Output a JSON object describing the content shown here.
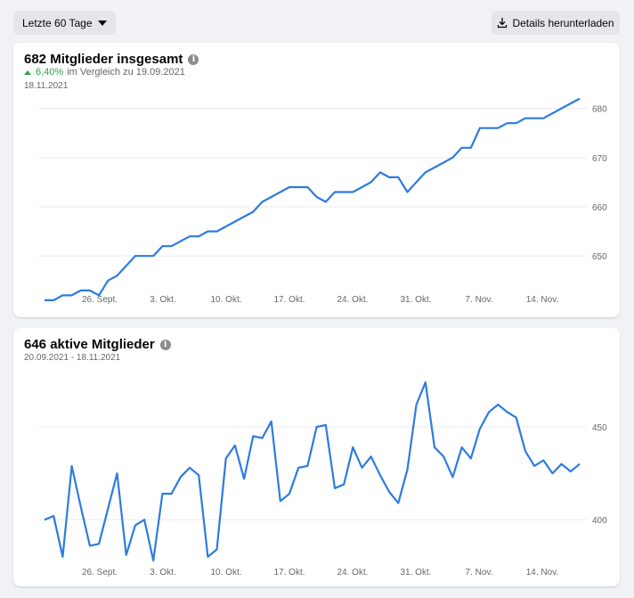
{
  "toolbar": {
    "range_label": "Letzte 60 Tage",
    "download_label": "Details herunterladen"
  },
  "colors": {
    "line": "#2d7be0",
    "grid": "#e9ebee",
    "positive": "#31a24c"
  },
  "icons": {
    "range_caret": "caret-down-icon",
    "download": "download-icon",
    "info": "info-icon",
    "change": "arrow-up-icon"
  },
  "members_card": {
    "title": "682 Mitglieder insgesamt",
    "change_pct": "6,40%",
    "change_text": "im Vergleich zu 19.09.2021",
    "date": "18.11.2021"
  },
  "active_card": {
    "title": "646 aktive Mitglieder",
    "date": "20.09.2021 - 18.11.2021"
  },
  "chart_data": [
    {
      "type": "line",
      "title": "682 Mitglieder insgesamt",
      "x_tick_labels": [
        "26. Sept.",
        "3. Okt.",
        "10. Okt.",
        "17. Okt.",
        "24. Okt.",
        "31. Okt.",
        "7. Nov.",
        "14. Nov."
      ],
      "y_ticks": [
        650,
        660,
        670,
        680
      ],
      "ylim": [
        637,
        687
      ],
      "grid": true,
      "series": [
        {
          "values": [
            641,
            641,
            642,
            642,
            643,
            643,
            642,
            645,
            646,
            648,
            650,
            650,
            650,
            652,
            652,
            653,
            654,
            654,
            655,
            655,
            656,
            657,
            658,
            659,
            661,
            662,
            663,
            664,
            664,
            664,
            662,
            661,
            663,
            663,
            663,
            664,
            665,
            667,
            666,
            666,
            663,
            665,
            667,
            668,
            669,
            670,
            672,
            672,
            676,
            676,
            676,
            677,
            677,
            678,
            678,
            678,
            679,
            680,
            681,
            682
          ]
        }
      ]
    },
    {
      "type": "line",
      "title": "646 aktive Mitglieder",
      "x_tick_labels": [
        "26. Sept.",
        "3. Okt.",
        "10. Okt.",
        "17. Okt.",
        "24. Okt.",
        "31. Okt.",
        "7. Nov.",
        "14. Nov."
      ],
      "y_ticks": [
        400,
        450
      ],
      "ylim": [
        366,
        486
      ],
      "grid": true,
      "series": [
        {
          "values": [
            400,
            402,
            380,
            429,
            407,
            386,
            387,
            406,
            425,
            381,
            397,
            400,
            378,
            414,
            414,
            423,
            428,
            424,
            380,
            384,
            433,
            440,
            422,
            445,
            444,
            453,
            410,
            414,
            428,
            429,
            450,
            451,
            417,
            419,
            439,
            428,
            434,
            424,
            415,
            409,
            427,
            462,
            474,
            439,
            434,
            423,
            439,
            433,
            449,
            458,
            462,
            458,
            455,
            437,
            429,
            432,
            425,
            430,
            426,
            430
          ]
        }
      ]
    }
  ]
}
